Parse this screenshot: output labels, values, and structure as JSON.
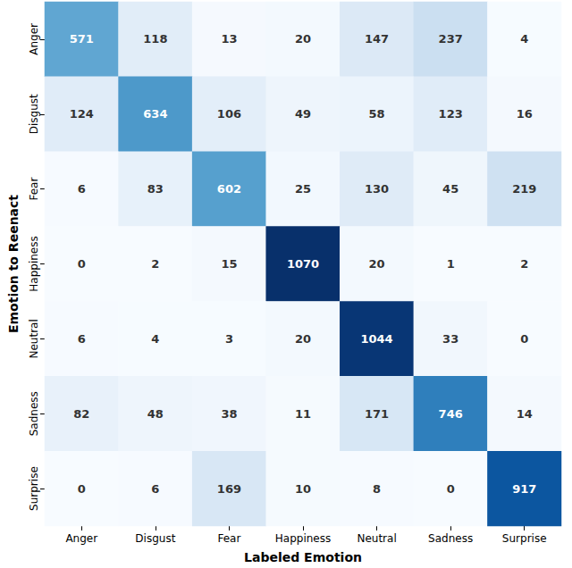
{
  "chart_data": {
    "type": "heatmap",
    "x_label": "Labeled Emotion",
    "y_label": "Emotion to Reenact",
    "x_categories": [
      "Anger",
      "Disgust",
      "Fear",
      "Happiness",
      "Neutral",
      "Sadness",
      "Surprise"
    ],
    "y_categories": [
      "Anger",
      "Disgust",
      "Fear",
      "Happiness",
      "Neutral",
      "Sadness",
      "Surprise"
    ],
    "cells": [
      [
        571,
        118,
        13,
        20,
        147,
        237,
        4
      ],
      [
        124,
        634,
        106,
        49,
        58,
        123,
        16
      ],
      [
        6,
        83,
        602,
        25,
        130,
        45,
        219
      ],
      [
        0,
        2,
        15,
        1070,
        20,
        1,
        2
      ],
      [
        6,
        4,
        3,
        20,
        1044,
        33,
        0
      ],
      [
        82,
        48,
        38,
        11,
        171,
        746,
        14
      ],
      [
        0,
        6,
        169,
        10,
        8,
        0,
        917
      ]
    ],
    "data_labels": true
  }
}
